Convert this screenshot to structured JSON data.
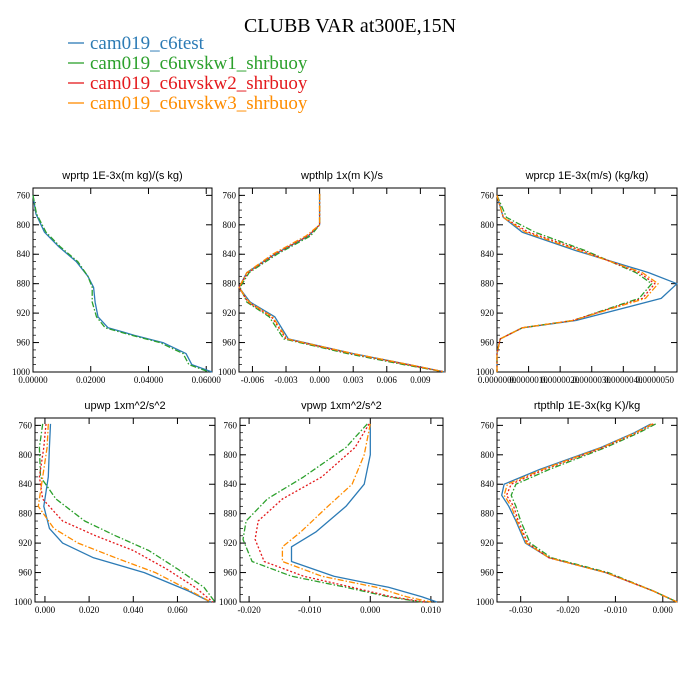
{
  "title": "CLUBB VAR at300E,15N",
  "legend": [
    {
      "name": "cam019_c6test",
      "color": "#2c7bb6",
      "dash": "solid"
    },
    {
      "name": "cam019_c6uvskw1_shrbuoy",
      "color": "#2ca02c",
      "dash": "dashdot"
    },
    {
      "name": "cam019_c6uvskw2_shrbuoy",
      "color": "#e41a1c",
      "dash": "dot"
    },
    {
      "name": "cam019_c6uvskw3_shrbuoy",
      "color": "#ff8c00",
      "dash": "dashdot"
    }
  ],
  "chart_data": [
    {
      "type": "line",
      "title": "wprtp  1E-3x(m kg)/(s kg)",
      "xlim": [
        0,
        0.062
      ],
      "ylim": [
        1000,
        750
      ],
      "y_ticks": [
        760,
        800,
        840,
        880,
        920,
        960,
        1000
      ],
      "x_ticks": [
        0.0,
        0.02,
        0.04,
        0.06
      ],
      "x_tick_labels": [
        "0.00000",
        "0.02000",
        "0.04000",
        "0.06000"
      ],
      "series": [
        {
          "x": [
            0.0,
            0.001,
            0.004,
            0.009,
            0.015,
            0.019,
            0.021,
            0.0215,
            0.0225,
            0.026,
            0.035,
            0.045,
            0.053,
            0.055,
            0.062
          ],
          "y": [
            760,
            785,
            810,
            830,
            850,
            870,
            885,
            905,
            925,
            940,
            950,
            960,
            975,
            990,
            1000
          ]
        },
        {
          "x": [
            0.0,
            0.0012,
            0.0045,
            0.0095,
            0.0155,
            0.019,
            0.0205,
            0.0205,
            0.022,
            0.025,
            0.034,
            0.044,
            0.052,
            0.054,
            0.061
          ],
          "y": [
            760,
            785,
            810,
            830,
            850,
            870,
            885,
            905,
            925,
            940,
            950,
            960,
            975,
            990,
            1000
          ]
        }
      ]
    },
    {
      "type": "line",
      "title": "wpthlp  1x(m K)/s",
      "xlim": [
        -0.0072,
        0.0112
      ],
      "ylim": [
        1000,
        750
      ],
      "y_ticks": [
        760,
        800,
        840,
        880,
        920,
        960,
        1000
      ],
      "x_ticks": [
        -0.006,
        -0.003,
        0.0,
        0.003,
        0.006,
        0.009
      ],
      "x_tick_labels": [
        "-0.006",
        "-0.003",
        "0.000",
        "0.003",
        "0.006",
        "0.009"
      ],
      "series": [
        {
          "x": [
            0.0,
            0.0,
            -0.001,
            -0.004,
            -0.0065,
            -0.0072,
            -0.0062,
            -0.004,
            -0.0028,
            0.003,
            0.008,
            0.0112
          ],
          "y": [
            758,
            800,
            815,
            840,
            865,
            885,
            905,
            925,
            955,
            975,
            990,
            1000
          ]
        },
        {
          "x": [
            0.0,
            0.0,
            -0.0008,
            -0.0038,
            -0.0063,
            -0.0071,
            -0.0065,
            -0.0045,
            -0.0032,
            0.0025,
            0.0075,
            0.0112
          ],
          "y": [
            758,
            800,
            815,
            840,
            865,
            885,
            905,
            925,
            955,
            975,
            990,
            1000
          ]
        },
        {
          "x": [
            0.0,
            0.0,
            -0.001,
            -0.004,
            -0.0064,
            -0.0072,
            -0.0064,
            -0.0043,
            -0.003,
            0.0028,
            0.0078,
            0.0112
          ],
          "y": [
            758,
            800,
            815,
            840,
            865,
            885,
            905,
            925,
            955,
            975,
            990,
            1000
          ]
        },
        {
          "x": [
            0.0,
            0.0,
            -0.0012,
            -0.0042,
            -0.0065,
            -0.0072,
            -0.0063,
            -0.0042,
            -0.0029,
            0.003,
            0.008,
            0.0112
          ],
          "y": [
            758,
            800,
            815,
            840,
            865,
            885,
            905,
            925,
            955,
            975,
            990,
            1000
          ]
        }
      ]
    },
    {
      "type": "line",
      "title": "wprcp  1E-3x(m/s) (kg/kg)",
      "xlim": [
        0,
        5.7e-06
      ],
      "ylim": [
        1000,
        750
      ],
      "y_ticks": [
        760,
        800,
        840,
        880,
        920,
        960,
        1000
      ],
      "x_ticks": [
        0.0,
        1e-06,
        2e-06,
        3e-06,
        4e-06,
        5e-06
      ],
      "x_tick_labels": [
        "0.0000000",
        "0.0000010",
        "0.0000020",
        "0.0000030",
        "0.0000040",
        "0.0000050"
      ],
      "series": [
        {
          "x": [
            0,
            2e-07,
            8e-07,
            2.5e-06,
            4.8e-06,
            5.7e-06,
            5.2e-06,
            2.5e-06,
            8e-07,
            1e-07,
            0,
            0
          ],
          "y": [
            760,
            790,
            810,
            835,
            865,
            880,
            900,
            930,
            940,
            955,
            975,
            1000
          ]
        },
        {
          "x": [
            0,
            3e-07,
            1.2e-06,
            2.8e-06,
            4.4e-06,
            4.9e-06,
            4.5e-06,
            2.4e-06,
            8e-07,
            1e-07,
            0,
            0
          ],
          "y": [
            760,
            790,
            810,
            835,
            865,
            880,
            900,
            930,
            940,
            955,
            975,
            1000
          ]
        },
        {
          "x": [
            0,
            2e-07,
            1e-06,
            2.7e-06,
            4.5e-06,
            5e-06,
            4.6e-06,
            2.4e-06,
            8e-07,
            1e-07,
            0,
            0
          ],
          "y": [
            760,
            790,
            810,
            835,
            865,
            880,
            900,
            930,
            940,
            955,
            975,
            1000
          ]
        },
        {
          "x": [
            0,
            2e-07,
            9e-07,
            2.6e-06,
            4.6e-06,
            5.1e-06,
            4.7e-06,
            2.4e-06,
            8e-07,
            1e-07,
            0,
            0
          ],
          "y": [
            760,
            790,
            810,
            835,
            865,
            880,
            900,
            930,
            940,
            955,
            975,
            1000
          ]
        }
      ]
    },
    {
      "type": "line",
      "title": "upwp  1xm^2/s^2",
      "xlim": [
        -0.0045,
        0.077
      ],
      "ylim": [
        1000,
        750
      ],
      "y_ticks": [
        760,
        800,
        840,
        880,
        920,
        960,
        1000
      ],
      "x_ticks": [
        0.0,
        0.02,
        0.04,
        0.06
      ],
      "x_tick_labels": [
        "0.000",
        "0.020",
        "0.040",
        "0.060"
      ],
      "series": [
        {
          "x": [
            0.0025,
            0.002,
            0.0015,
            -0.0005,
            0.002,
            0.008,
            0.022,
            0.045,
            0.065,
            0.075
          ],
          "y": [
            758,
            790,
            830,
            870,
            900,
            920,
            940,
            960,
            985,
            1000
          ]
        },
        {
          "x": [
            -0.001,
            -0.0025,
            -0.002,
            0.005,
            0.018,
            0.032,
            0.047,
            0.06,
            0.072,
            0.077
          ],
          "y": [
            758,
            790,
            830,
            860,
            890,
            910,
            930,
            955,
            980,
            1000
          ]
        },
        {
          "x": [
            0.0005,
            -0.0005,
            -0.0025,
            -0.001,
            0.008,
            0.023,
            0.04,
            0.055,
            0.068,
            0.076
          ],
          "y": [
            758,
            790,
            830,
            860,
            890,
            910,
            930,
            955,
            980,
            1000
          ]
        },
        {
          "x": [
            0.0015,
            0.001,
            -0.001,
            -0.003,
            0.004,
            0.015,
            0.032,
            0.05,
            0.066,
            0.075
          ],
          "y": [
            758,
            790,
            830,
            870,
            900,
            920,
            940,
            960,
            985,
            1000
          ]
        }
      ]
    },
    {
      "type": "line",
      "title": "vpwp  1xm^2/s^2",
      "xlim": [
        -0.0215,
        0.012
      ],
      "ylim": [
        1000,
        750
      ],
      "y_ticks": [
        760,
        800,
        840,
        880,
        920,
        960,
        1000
      ],
      "x_ticks": [
        -0.02,
        -0.01,
        0.0,
        0.01
      ],
      "x_tick_labels": [
        "-0.020",
        "-0.010",
        "0.000",
        "0.010"
      ],
      "series": [
        {
          "x": [
            0.0,
            0.0,
            -0.001,
            -0.004,
            -0.009,
            -0.013,
            -0.013,
            -0.006,
            0.003,
            0.0085,
            0.011
          ],
          "y": [
            758,
            800,
            840,
            870,
            905,
            925,
            945,
            965,
            980,
            993,
            1000
          ]
        },
        {
          "x": [
            -0.0005,
            -0.004,
            -0.011,
            -0.017,
            -0.0205,
            -0.021,
            -0.0195,
            -0.013,
            -0.004,
            0.003,
            0.0085
          ],
          "y": [
            758,
            790,
            830,
            860,
            890,
            915,
            945,
            965,
            980,
            993,
            1000
          ]
        },
        {
          "x": [
            -0.0002,
            -0.0025,
            -0.008,
            -0.0145,
            -0.0185,
            -0.019,
            -0.0175,
            -0.011,
            -0.003,
            0.0035,
            0.009
          ],
          "y": [
            758,
            790,
            830,
            860,
            890,
            915,
            945,
            965,
            980,
            993,
            1000
          ]
        },
        {
          "x": [
            0.0,
            -0.001,
            -0.003,
            -0.007,
            -0.0115,
            -0.0145,
            -0.0145,
            -0.008,
            0.001,
            0.006,
            0.01
          ],
          "y": [
            758,
            800,
            840,
            870,
            905,
            925,
            945,
            965,
            980,
            993,
            1000
          ]
        }
      ]
    },
    {
      "type": "line",
      "title": "rtpthlp  1E-3x(kg K)/kg",
      "xlim": [
        -0.035,
        0.003
      ],
      "ylim": [
        1000,
        750
      ],
      "y_ticks": [
        760,
        800,
        840,
        880,
        920,
        960,
        1000
      ],
      "x_ticks": [
        -0.03,
        -0.02,
        -0.01,
        0.0
      ],
      "x_tick_labels": [
        "-0.030",
        "-0.020",
        "-0.010",
        "0.000"
      ],
      "series": [
        {
          "x": [
            -0.0025,
            -0.006,
            -0.013,
            -0.026,
            -0.0335,
            -0.034,
            -0.0325,
            -0.031,
            -0.029,
            -0.024,
            -0.012,
            -0.002,
            0.003
          ],
          "y": [
            758,
            770,
            790,
            820,
            840,
            855,
            870,
            890,
            920,
            940,
            960,
            985,
            1000
          ]
        },
        {
          "x": [
            -0.0015,
            -0.005,
            -0.012,
            -0.024,
            -0.031,
            -0.032,
            -0.031,
            -0.03,
            -0.028,
            -0.0235,
            -0.0115,
            -0.002,
            0.003
          ],
          "y": [
            758,
            770,
            790,
            820,
            840,
            855,
            870,
            890,
            920,
            940,
            960,
            985,
            1000
          ]
        },
        {
          "x": [
            -0.002,
            -0.0055,
            -0.0125,
            -0.025,
            -0.032,
            -0.033,
            -0.0315,
            -0.0305,
            -0.0285,
            -0.024,
            -0.012,
            -0.002,
            0.003
          ],
          "y": [
            758,
            770,
            790,
            820,
            840,
            855,
            870,
            890,
            920,
            940,
            960,
            985,
            1000
          ]
        },
        {
          "x": [
            -0.0022,
            -0.0058,
            -0.0128,
            -0.0255,
            -0.0328,
            -0.0335,
            -0.032,
            -0.0308,
            -0.0288,
            -0.024,
            -0.012,
            -0.002,
            0.003
          ],
          "y": [
            758,
            770,
            790,
            820,
            840,
            855,
            870,
            890,
            920,
            940,
            960,
            985,
            1000
          ]
        }
      ]
    }
  ]
}
